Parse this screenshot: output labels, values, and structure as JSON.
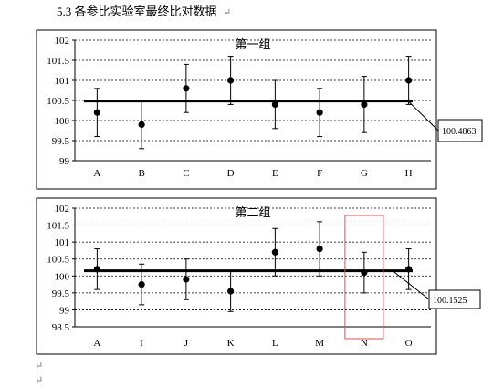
{
  "section_heading": "5.3 各参比实验室最终比对数据",
  "return_mark": "↵",
  "colors": {
    "frame": "#000000",
    "grid": "#000000",
    "mean_line": "#000000",
    "point": "#000000",
    "highlight_box": "#e05050"
  },
  "chart_data": [
    {
      "type": "scatter",
      "title": "第一组",
      "categories": [
        "A",
        "B",
        "C",
        "D",
        "E",
        "F",
        "G",
        "H"
      ],
      "y_ticks": [
        "99",
        "99.5",
        "100",
        "100.5",
        "101",
        "101.5",
        "102"
      ],
      "ylim": [
        99,
        102
      ],
      "grid": true,
      "series": [
        {
          "values": [
            100.2,
            99.9,
            100.8,
            101.0,
            100.4,
            100.2,
            100.4,
            101.0
          ],
          "error_low": [
            99.6,
            99.3,
            100.2,
            100.4,
            99.8,
            99.6,
            99.7,
            100.4
          ],
          "error_high": [
            100.8,
            100.5,
            101.4,
            101.6,
            101.0,
            100.8,
            101.1,
            101.6
          ]
        }
      ],
      "mean": 100.4863,
      "mean_label": "100.4863",
      "highlight_category": null
    },
    {
      "type": "scatter",
      "title": "第二组",
      "categories": [
        "A",
        "I",
        "J",
        "K",
        "L",
        "M",
        "N",
        "O"
      ],
      "y_ticks": [
        "98.5",
        "99",
        "99.5",
        "100",
        "100.5",
        "101",
        "101.5",
        "102"
      ],
      "ylim": [
        98.5,
        102
      ],
      "grid": true,
      "series": [
        {
          "values": [
            100.2,
            99.75,
            99.9,
            99.55,
            100.7,
            100.8,
            100.1,
            100.2
          ],
          "error_low": [
            99.6,
            99.15,
            99.3,
            98.95,
            100.0,
            100.0,
            99.5,
            99.6
          ],
          "error_high": [
            100.8,
            100.35,
            100.5,
            100.15,
            101.4,
            101.6,
            100.7,
            100.8
          ]
        }
      ],
      "mean": 100.1525,
      "mean_label": "100.1525",
      "highlight_category": "N"
    }
  ]
}
